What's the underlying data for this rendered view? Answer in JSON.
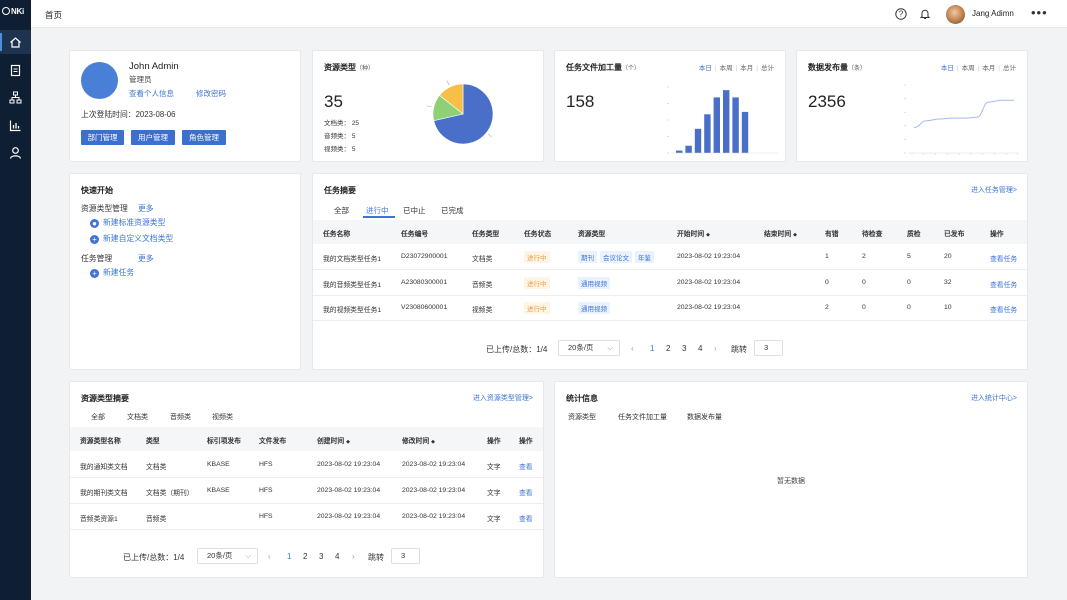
{
  "sidebar": {
    "logo": "NKi"
  },
  "topbar": {
    "title": "首页",
    "user_name": "Jang Adimn"
  },
  "profile": {
    "name": "John Admin",
    "role": "管理员",
    "view_info": "查看个人信息",
    "change_password": "修改密码",
    "last_login": "上次登陆时间：2023-08-06",
    "buttons": [
      "部门管理",
      "用户管理",
      "角色管理"
    ]
  },
  "resource_types": {
    "title": "资源类型",
    "unit": "（种）",
    "total": "35",
    "items": [
      {
        "label": "文档类：",
        "value": "25"
      },
      {
        "label": "音频类：",
        "value": "5"
      },
      {
        "label": "视频类：",
        "value": "5"
      }
    ],
    "colors": [
      "#4a6fc9",
      "#8fcf76",
      "#f5c045"
    ]
  },
  "task_files": {
    "title": "任务文件加工量",
    "unit": "（个）",
    "total": "158",
    "tabs": [
      "本日",
      "本周",
      "本月",
      "总计"
    ],
    "bar_values": [
      1,
      3,
      10,
      16,
      23,
      26,
      23,
      17
    ],
    "bar_color": "#4a6fc9"
  },
  "publish": {
    "title": "数据发布量",
    "unit": "（条）",
    "total": "2356",
    "tabs": [
      "本日",
      "本周",
      "本月",
      "总计"
    ],
    "line_values": [
      30,
      38,
      40,
      41,
      41,
      42,
      60,
      62,
      62
    ],
    "line_color": "#a8b8f0"
  },
  "quick": {
    "title": "快速开始",
    "groups": [
      {
        "title": "资源类型管理",
        "more": "更多",
        "items": [
          "新建标准资源类型",
          "新建自定义文档类型"
        ]
      },
      {
        "title": "任务管理",
        "more": "更多",
        "items": [
          "新建任务"
        ]
      }
    ]
  },
  "tasks": {
    "title": "任务摘要",
    "link": "进入任务管理>",
    "tabs": [
      "全部",
      "进行中",
      "已中止",
      "已完成"
    ],
    "active_tab": 1,
    "headers": [
      "任务名称",
      "任务编号",
      "任务类型",
      "任务状态",
      "资源类型",
      "开始时间",
      "结束时间",
      "有错",
      "待检查",
      "质检",
      "已发布",
      "操作"
    ],
    "rows": [
      {
        "name": "我的文档类型任务1",
        "code": "D23072900001",
        "type": "文档类",
        "status": "进行中",
        "tags": [
          "期刊",
          "会议论文",
          "年鉴"
        ],
        "start": "2023-08-02 19:23:04",
        "end": "",
        "err": "1",
        "pending": "2",
        "qc": "5",
        "pub": "20",
        "op": "查看任务"
      },
      {
        "name": "我的音频类型任务1",
        "code": "A23080300001",
        "type": "音频类",
        "status": "进行中",
        "tags": [
          "通用视频"
        ],
        "start": "2023-08-02 19:23:04",
        "end": "",
        "err": "0",
        "pending": "0",
        "qc": "0",
        "pub": "32",
        "op": "查看任务"
      },
      {
        "name": "我的视频类型任务1",
        "code": "V23080600001",
        "type": "视频类",
        "status": "进行中",
        "tags": [
          "通用视频"
        ],
        "start": "2023-08-02 19:23:04",
        "end": "",
        "err": "2",
        "pending": "0",
        "qc": "0",
        "pub": "10",
        "op": "查看任务"
      }
    ],
    "pager": {
      "summary": "已上传/总数：1/4",
      "page_size": "20条/页",
      "pages": [
        "1",
        "2",
        "3",
        "4"
      ],
      "jump_label": "跳转",
      "jump_value": "3"
    }
  },
  "resources": {
    "title": "资源类型摘要",
    "link": "进入资源类型管理>",
    "tabs": [
      "全部",
      "文档类",
      "音频类",
      "视频类"
    ],
    "headers": [
      "资源类型名称",
      "类型",
      "标引项发布",
      "文件发布",
      "创建时间",
      "修改时间",
      "操作",
      "操作"
    ],
    "rows": [
      {
        "name": "我的通知类文档",
        "type": "文档类",
        "index": "KBASE",
        "file": "HFS",
        "created": "2023-08-02 19:23:04",
        "modified": "2023-08-02 19:23:04",
        "op1": "文字",
        "op2": "查看"
      },
      {
        "name": "我的期刊类文档",
        "type": "文档类（期刊）",
        "index": "KBASE",
        "file": "HFS",
        "created": "2023-08-02 19:23:04",
        "modified": "2023-08-02 19:23:04",
        "op1": "文字",
        "op2": "查看"
      },
      {
        "name": "音频类资源1",
        "type": "音频类",
        "index": "",
        "file": "HFS",
        "created": "2023-08-02 19:23:04",
        "modified": "2023-08-02 19:23:04",
        "op1": "文字",
        "op2": "查看"
      }
    ],
    "pager": {
      "summary": "已上传/总数：1/4",
      "page_size": "20条/页",
      "pages": [
        "1",
        "2",
        "3",
        "4"
      ],
      "jump_label": "跳转",
      "jump_value": "3"
    }
  },
  "stats": {
    "title": "统计信息",
    "link": "进入统计中心>",
    "tabs": [
      "资源类型",
      "任务文件加工量",
      "数据发布量"
    ],
    "empty": "暂无数据"
  }
}
